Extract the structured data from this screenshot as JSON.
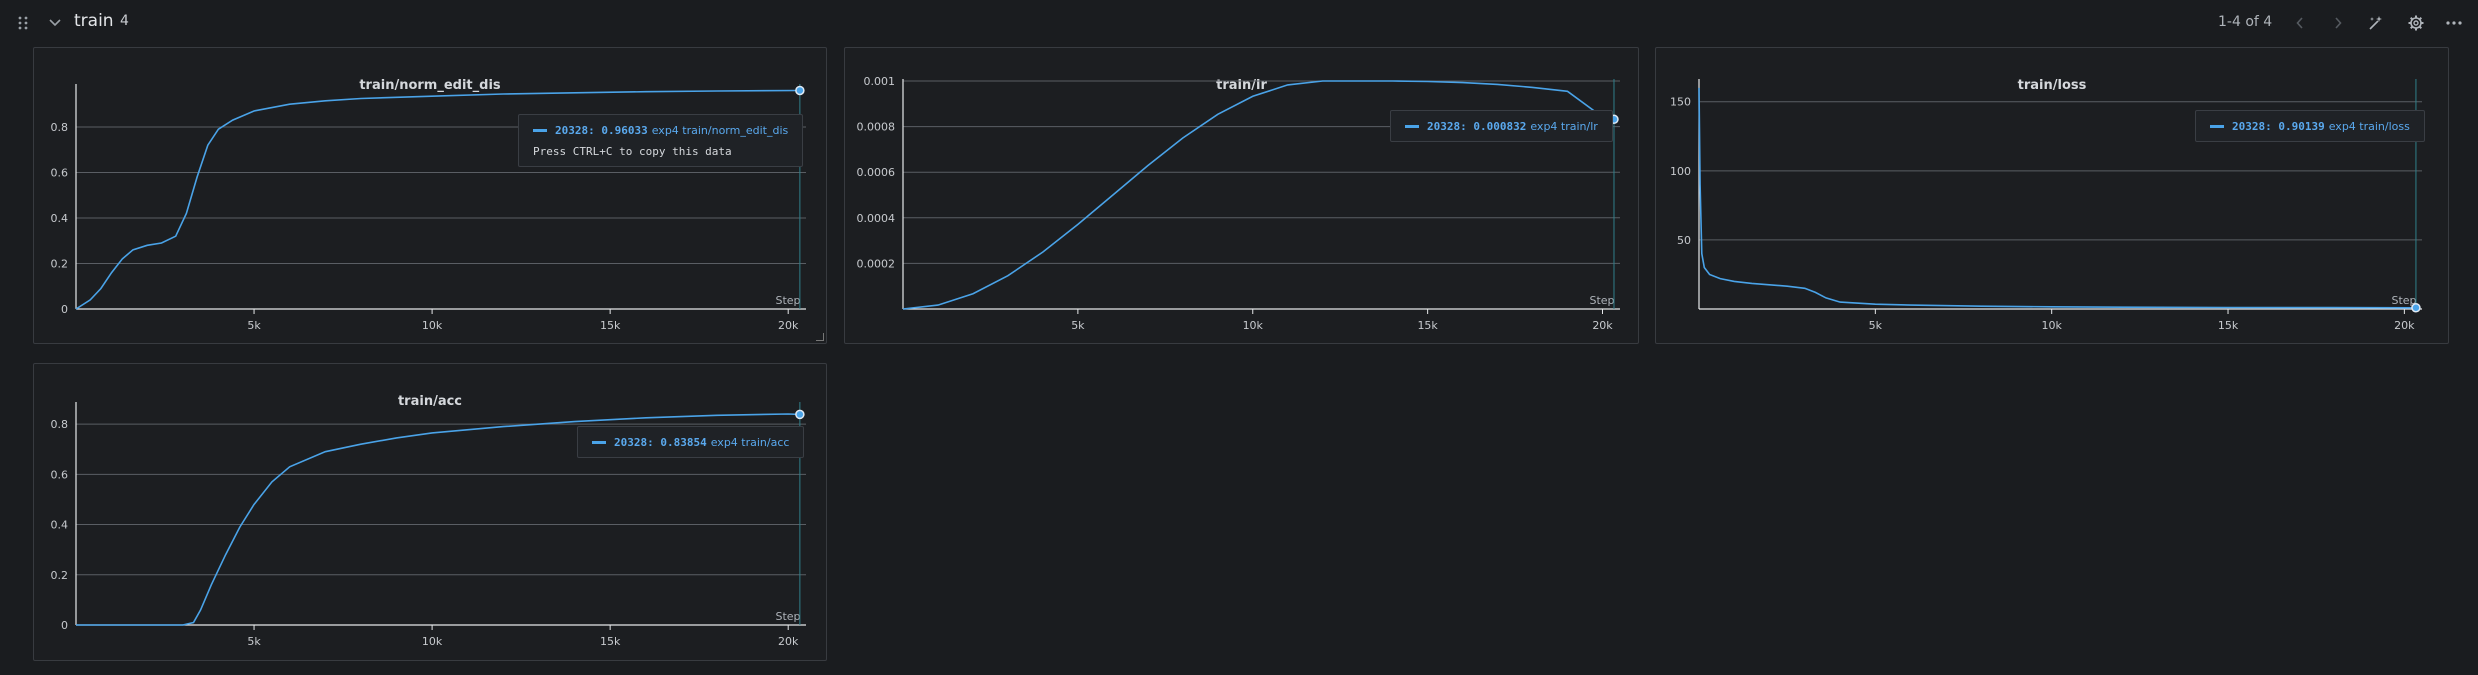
{
  "header": {
    "section_title": "train",
    "panel_count": "4",
    "pager": "1-4 of 4",
    "icons": [
      "drag-handle-icon",
      "chevron-down-icon",
      "chevron-left-icon",
      "chevron-right-icon",
      "magic-wand-icon",
      "gear-icon",
      "more-icon"
    ]
  },
  "colors": {
    "series": "#4aa3e8",
    "background": "#1a1c1f",
    "panel": "#1c1e21"
  },
  "panels": [
    {
      "title": "train/norm_edit_dis",
      "x_label": "Step",
      "tooltip": {
        "step": "20328",
        "value": "0.96033",
        "series": "exp4 train/norm_edit_dis",
        "copy_hint": "Press CTRL+C to copy this data"
      }
    },
    {
      "title": "train/lr",
      "x_label": "Step",
      "tooltip": {
        "step": "20328",
        "value": "0.000832",
        "series": "exp4 train/lr"
      }
    },
    {
      "title": "train/loss",
      "x_label": "Step",
      "tooltip": {
        "step": "20328",
        "value": "0.90139",
        "series": "exp4 train/loss"
      }
    },
    {
      "title": "train/acc",
      "x_label": "Step",
      "tooltip": {
        "step": "20328",
        "value": "0.83854",
        "series": "exp4 train/acc"
      }
    }
  ],
  "chart_data": [
    {
      "type": "line",
      "title": "train/norm_edit_dis",
      "xlabel": "Step",
      "x_ticks": [
        "5k",
        "10k",
        "15k",
        "20k"
      ],
      "y_ticks": [
        "0",
        "0.2",
        "0.4",
        "0.6",
        "0.8"
      ],
      "xlim": [
        0,
        20500
      ],
      "ylim": [
        0,
        0.98
      ],
      "series": [
        {
          "name": "exp4 train/norm_edit_dis",
          "x": [
            0,
            400,
            700,
            1000,
            1300,
            1600,
            2000,
            2400,
            2800,
            3100,
            3400,
            3700,
            4000,
            4400,
            5000,
            6000,
            7000,
            8000,
            10000,
            12000,
            14000,
            16000,
            18000,
            20328
          ],
          "y": [
            0,
            0.04,
            0.09,
            0.16,
            0.22,
            0.26,
            0.28,
            0.29,
            0.32,
            0.42,
            0.58,
            0.72,
            0.79,
            0.83,
            0.87,
            0.9,
            0.915,
            0.925,
            0.935,
            0.945,
            0.95,
            0.955,
            0.958,
            0.96033
          ]
        }
      ]
    },
    {
      "type": "line",
      "title": "train/lr",
      "xlabel": "Step",
      "x_ticks": [
        "5k",
        "10k",
        "15k",
        "20k"
      ],
      "y_ticks": [
        "0.0002",
        "0.0004",
        "0.0006",
        "0.0008",
        "0.001"
      ],
      "xlim": [
        0,
        20500
      ],
      "ylim": [
        0,
        0.001
      ],
      "series": [
        {
          "name": "exp4 train/lr",
          "x": [
            0,
            1000,
            2000,
            3000,
            4000,
            5000,
            6000,
            7000,
            8000,
            9000,
            10000,
            11000,
            12000,
            13000,
            14000,
            15000,
            16000,
            17000,
            18000,
            19000,
            20000,
            20328
          ],
          "y": [
            0,
            1.7e-05,
            6.7e-05,
            0.000146,
            0.00025,
            0.000371,
            0.0005,
            0.000629,
            0.00075,
            0.000854,
            0.000933,
            0.000983,
            0.001,
            0.001,
            0.001,
            0.000998,
            0.000993,
            0.000985,
            0.000972,
            0.000955,
            0.000842,
            0.000832
          ]
        }
      ]
    },
    {
      "type": "line",
      "title": "train/loss",
      "xlabel": "Step",
      "x_ticks": [
        "5k",
        "10k",
        "15k",
        "20k"
      ],
      "y_ticks": [
        "50",
        "100",
        "150"
      ],
      "xlim": [
        0,
        20500
      ],
      "ylim": [
        0,
        165
      ],
      "series": [
        {
          "name": "exp4 train/loss",
          "x": [
            0,
            30,
            80,
            150,
            300,
            600,
            1000,
            1500,
            2000,
            2500,
            3000,
            3300,
            3600,
            4000,
            5000,
            6000,
            8000,
            10000,
            12000,
            15000,
            18000,
            20328
          ],
          "y": [
            160,
            90,
            40,
            30,
            25,
            22,
            20,
            18.5,
            17.5,
            16.5,
            15,
            12,
            8,
            5,
            3.5,
            2.8,
            2,
            1.6,
            1.3,
            1.1,
            1.0,
            0.90139
          ]
        }
      ]
    },
    {
      "type": "line",
      "title": "train/acc",
      "xlabel": "Step",
      "x_ticks": [
        "5k",
        "10k",
        "15k",
        "20k"
      ],
      "y_ticks": [
        "0",
        "0.2",
        "0.4",
        "0.6",
        "0.8"
      ],
      "xlim": [
        0,
        20500
      ],
      "ylim": [
        0,
        0.88
      ],
      "series": [
        {
          "name": "exp4 train/acc",
          "x": [
            0,
            3000,
            3300,
            3500,
            3800,
            4200,
            4600,
            5000,
            5500,
            6000,
            7000,
            8000,
            9000,
            10000,
            12000,
            14000,
            16000,
            18000,
            20000,
            20328
          ],
          "y": [
            0,
            0,
            0.01,
            0.06,
            0.16,
            0.28,
            0.39,
            0.48,
            0.57,
            0.63,
            0.69,
            0.72,
            0.745,
            0.765,
            0.79,
            0.81,
            0.825,
            0.835,
            0.84,
            0.83854
          ]
        }
      ]
    }
  ]
}
